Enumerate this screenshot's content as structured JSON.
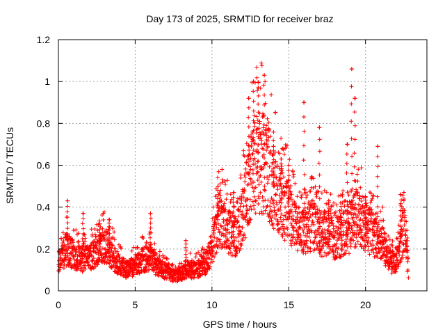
{
  "chart_data": {
    "type": "scatter",
    "title": "Day 173 of 2025, SRMTID for receiver braz",
    "xlabel": "GPS time / hours",
    "ylabel": "SRMTID / TECUs",
    "xlim": [
      0,
      24
    ],
    "ylim": [
      0,
      1.2
    ],
    "xticks": [
      0,
      5,
      10,
      15,
      20
    ],
    "xtick_labels": [
      "0",
      "5",
      "10",
      "15",
      "20"
    ],
    "yticks": [
      0,
      0.2,
      0.4,
      0.6,
      0.8,
      1,
      1.2
    ],
    "ytick_labels": [
      "0",
      "0.2",
      "0.4",
      "0.6",
      "0.8",
      "1",
      "1.2"
    ],
    "grid": true,
    "marker": "+",
    "marker_color": "#ff0000",
    "series": [
      {
        "name": "SRMTID",
        "profile": {
          "x": [
            0.0,
            0.5,
            1.0,
            1.5,
            2.0,
            2.5,
            3.0,
            3.5,
            4.0,
            4.5,
            5.0,
            5.5,
            6.0,
            6.5,
            7.0,
            7.5,
            8.0,
            8.5,
            9.0,
            9.5,
            10.0,
            10.5,
            11.0,
            11.5,
            12.0,
            12.5,
            13.0,
            13.5,
            14.0,
            14.5,
            15.0,
            15.5,
            16.0,
            16.5,
            17.0,
            17.5,
            18.0,
            18.5,
            19.0,
            19.5,
            20.0,
            20.5,
            21.0,
            21.5,
            22.0,
            22.5,
            22.8
          ],
          "y": [
            0.13,
            0.2,
            0.17,
            0.15,
            0.16,
            0.18,
            0.22,
            0.17,
            0.12,
            0.1,
            0.12,
            0.15,
            0.16,
            0.11,
            0.09,
            0.07,
            0.08,
            0.1,
            0.1,
            0.12,
            0.2,
            0.35,
            0.3,
            0.25,
            0.35,
            0.55,
            0.62,
            0.6,
            0.5,
            0.42,
            0.38,
            0.3,
            0.28,
            0.32,
            0.27,
            0.28,
            0.25,
            0.27,
            0.3,
            0.35,
            0.3,
            0.27,
            0.25,
            0.15,
            0.13,
            0.3,
            0.1
          ]
        },
        "points_per_hour": 120,
        "peaks": [
          {
            "x": 0.6,
            "y": 0.43
          },
          {
            "x": 1.6,
            "y": 0.37
          },
          {
            "x": 2.7,
            "y": 0.32
          },
          {
            "x": 3.3,
            "y": 0.34
          },
          {
            "x": 6.0,
            "y": 0.37
          },
          {
            "x": 8.3,
            "y": 0.24
          },
          {
            "x": 10.4,
            "y": 0.5
          },
          {
            "x": 11.4,
            "y": 0.47
          },
          {
            "x": 12.4,
            "y": 0.92
          },
          {
            "x": 12.7,
            "y": 1.0
          },
          {
            "x": 13.0,
            "y": 0.97
          },
          {
            "x": 13.4,
            "y": 1.03
          },
          {
            "x": 14.0,
            "y": 0.69
          },
          {
            "x": 14.5,
            "y": 0.63
          },
          {
            "x": 15.0,
            "y": 0.6
          },
          {
            "x": 16.0,
            "y": 0.9
          },
          {
            "x": 17.0,
            "y": 0.78
          },
          {
            "x": 17.6,
            "y": 0.43
          },
          {
            "x": 18.4,
            "y": 0.42
          },
          {
            "x": 18.8,
            "y": 0.7
          },
          {
            "x": 19.1,
            "y": 1.06
          },
          {
            "x": 19.3,
            "y": 0.92
          },
          {
            "x": 20.0,
            "y": 0.45
          },
          {
            "x": 20.8,
            "y": 0.69
          },
          {
            "x": 22.3,
            "y": 0.46
          }
        ]
      }
    ]
  }
}
